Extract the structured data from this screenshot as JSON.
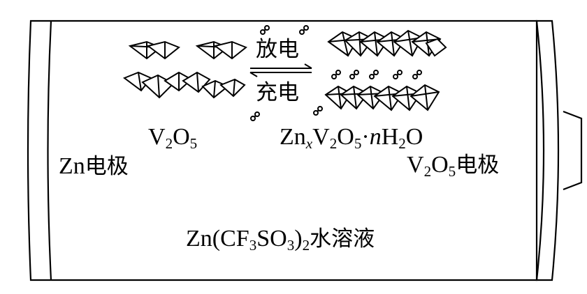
{
  "reaction": {
    "discharge": "放电",
    "charge": "充电"
  },
  "left_material": {
    "V": "V",
    "sub1": "2",
    "O": "O",
    "sub2": "5"
  },
  "right_material": {
    "Zn": "Zn",
    "x": "x",
    "V": "V",
    "sub1": "2",
    "O": "O",
    "sub2": "5",
    "dot": "·",
    "n": "n",
    "H": "H",
    "sub3": "2",
    "O2": "O"
  },
  "electrodes": {
    "zn_prefix": "Zn",
    "zn_suffix": "电极",
    "v_V": "V",
    "v_sub1": "2",
    "v_O": "O",
    "v_sub2": "5",
    "v_suffix": "电极"
  },
  "electrolyte": {
    "prefix": "Zn(CF",
    "sub1": "3",
    "mid": "SO",
    "sub2": "3",
    "close": ")",
    "sub3": "2",
    "suffix": "水溶液"
  }
}
